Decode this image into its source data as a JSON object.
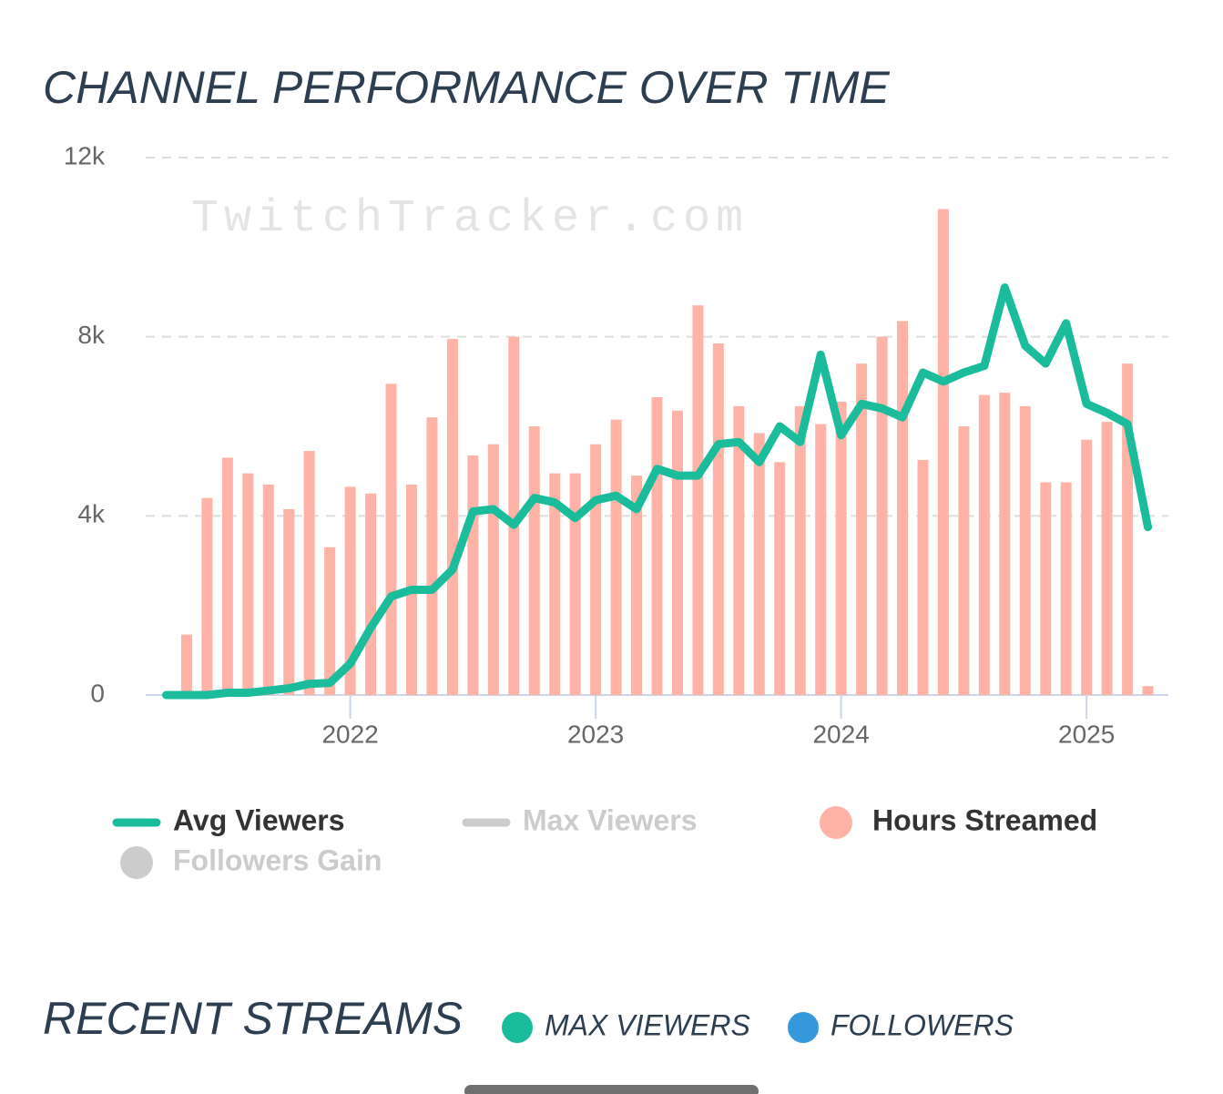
{
  "chart_data": {
    "type": "combo",
    "title": "CHANNEL PERFORMANCE OVER TIME",
    "watermark": "TwitchTracker.com",
    "x": [
      "2021-04",
      "2021-05",
      "2021-06",
      "2021-07",
      "2021-08",
      "2021-09",
      "2021-10",
      "2021-11",
      "2021-12",
      "2022-01",
      "2022-02",
      "2022-03",
      "2022-04",
      "2022-05",
      "2022-06",
      "2022-07",
      "2022-08",
      "2022-09",
      "2022-10",
      "2022-11",
      "2022-12",
      "2023-01",
      "2023-02",
      "2023-03",
      "2023-04",
      "2023-05",
      "2023-06",
      "2023-07",
      "2023-08",
      "2023-09",
      "2023-10",
      "2023-11",
      "2023-12",
      "2024-01",
      "2024-02",
      "2024-03",
      "2024-04",
      "2024-05",
      "2024-06",
      "2024-07",
      "2024-08",
      "2024-09",
      "2024-10",
      "2024-11",
      "2024-12",
      "2025-01",
      "2025-02",
      "2025-03",
      "2025-04"
    ],
    "xlim": [
      "2021-03",
      "2025-05"
    ],
    "xticks": [
      2022,
      2023,
      2024,
      2025
    ],
    "ylim": [
      0,
      12000
    ],
    "yticks": [
      0,
      {
        "value": 4000,
        "label": "4k"
      },
      {
        "value": 8000,
        "label": "8k"
      },
      {
        "value": 12000,
        "label": "12k"
      }
    ],
    "grid": true,
    "series": [
      {
        "name": "Avg Viewers",
        "type": "line",
        "marker": "line",
        "color": "#1abc9c",
        "visible": true,
        "values": [
          0,
          0,
          0,
          50,
          50,
          100,
          150,
          250,
          270,
          700,
          1500,
          2200,
          2350,
          2350,
          2800,
          4100,
          4150,
          3800,
          4400,
          4300,
          3950,
          4350,
          4450,
          4150,
          5050,
          4900,
          4900,
          5600,
          5650,
          5200,
          6000,
          5650,
          7600,
          5800,
          6500,
          6400,
          6200,
          7200,
          7000,
          7200,
          7350,
          9100,
          7800,
          7400,
          8300,
          6500,
          6300,
          6050,
          3750
        ]
      },
      {
        "name": "Max Viewers",
        "type": "line",
        "marker": "line",
        "color": "#cccccc",
        "visible": false
      },
      {
        "name": "Hours Streamed",
        "type": "bar",
        "marker": "circle",
        "color": "#ffb3a7",
        "visible": true,
        "values": [
          null,
          1350,
          4400,
          5300,
          4950,
          4700,
          4150,
          5450,
          3300,
          4650,
          4500,
          6950,
          4700,
          6200,
          7950,
          5350,
          5600,
          8000,
          6000,
          4950,
          4950,
          5600,
          6150,
          4900,
          6650,
          6350,
          8700,
          7850,
          6450,
          5850,
          5200,
          6450,
          6050,
          6550,
          7400,
          8000,
          8350,
          5250,
          10850,
          6000,
          6700,
          6750,
          6450,
          4750,
          4750,
          5700,
          6100,
          7400,
          200
        ]
      },
      {
        "name": "Followers Gain",
        "type": "bar",
        "marker": "circle",
        "color": "#cccccc",
        "visible": false
      }
    ]
  },
  "recent_streams": {
    "title": "RECENT STREAMS",
    "legend": [
      {
        "name": "MAX VIEWERS",
        "color": "#1abc9c"
      },
      {
        "name": "FOLLOWERS",
        "color": "#3498db"
      }
    ]
  }
}
